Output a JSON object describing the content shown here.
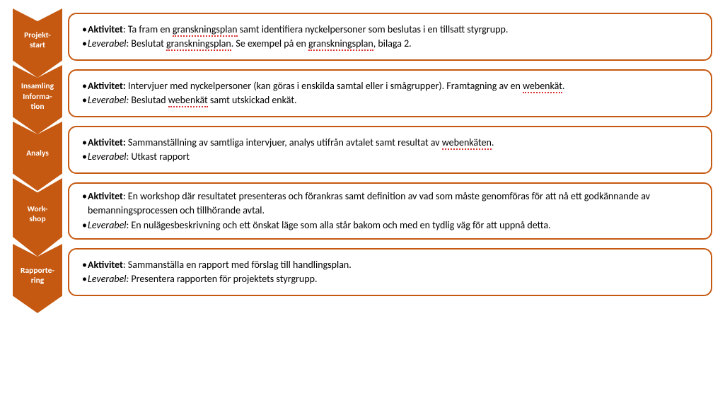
{
  "diagram": {
    "chevron_fill": "#c65911",
    "chevron_text_color": "#ffffff",
    "box_border_color": "#c65911",
    "box_border_radius": 12,
    "box_border_width": 2.5,
    "background_color": "#ffffff",
    "font_family": "Calibri",
    "label_fontsize": 11.5,
    "body_fontsize": 14,
    "spellcheck_underline_color": "#dd3333",
    "steps": [
      {
        "key": "projektstart",
        "label_html": "Projekt-<br>start",
        "aktivitet_label": "Aktivitet",
        "aktivitet_text_html": ": Ta fram en <span class=\"u\">granskningsplan</span> samt identifiera nyckelpersoner som beslutas i en tillsatt styrgrupp.",
        "leverabel_label": "Leverabel",
        "leverabel_text_html": ": Beslutat <span class=\"u\">granskningsplan</span>.  Se exempel på en <span class=\"u\">granskningsplan</span>,  bilaga 2."
      },
      {
        "key": "insamling",
        "label_html": "Insamling<br>Informa-<br>tion",
        "aktivitet_label": "Aktivitet:",
        "aktivitet_text_html": " Intervjuer med nyckelpersoner (kan göras i enskilda samtal eller i smågrupper). Framtagning av en <span class=\"u\">webenkät</span>.",
        "leverabel_label": "Leverabel:",
        "leverabel_text_html": " Beslutad <span class=\"u\">webenkät</span> samt utskickad enkät."
      },
      {
        "key": "analys",
        "label_html": "Analys",
        "aktivitet_label": "Aktivitet:",
        "aktivitet_text_html": "  Sammanställning av samtliga intervjuer, analys utifrån avtalet samt resultat av <span class=\"u\">webenkäten</span>.",
        "leverabel_label": "Leverabel",
        "leverabel_text_html": ": Utkast rapport"
      },
      {
        "key": "workshop",
        "label_html": "Work-<br>shop",
        "aktivitet_label": "Aktivitet",
        "aktivitet_text_html": ": En workshop där resultatet presenteras och förankras samt definition  av vad som måste genomföras för att nå ett godkännande av bemanningsprocessen och tillhörande avtal.",
        "leverabel_label": "Leverabel",
        "leverabel_text_html": ": En nulägesbeskrivning och ett önskat läge som alla står bakom och med en tydlig väg för att uppnå detta."
      },
      {
        "key": "rapportering",
        "label_html": "Rapporte-<br>ring",
        "aktivitet_label": "Aktivitet",
        "aktivitet_text_html": ": Sammanställa en rapport med förslag till handlingsplan.",
        "leverabel_label": "Leverabel:",
        "leverabel_text_html": " Presentera rapporten för projektets styrgrupp."
      }
    ]
  }
}
